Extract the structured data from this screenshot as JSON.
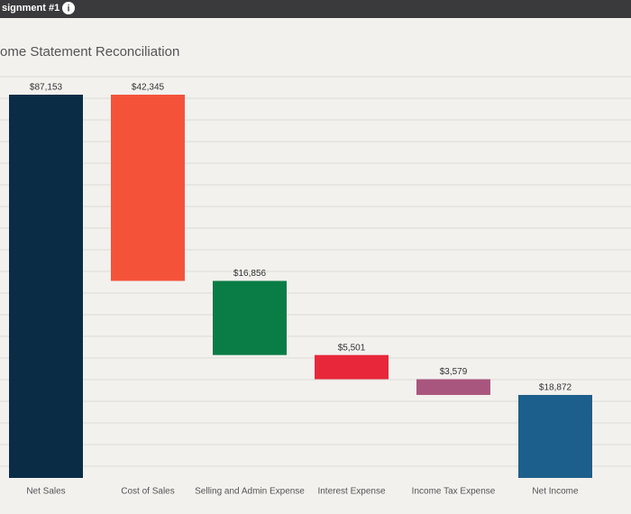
{
  "header": {
    "title": "signment #1"
  },
  "chart_data": {
    "type": "waterfall",
    "title": "Income Statement Reconciliation",
    "categories": [
      "Net Sales",
      "Cost of Sales",
      "Selling and Admin Expense",
      "Interest Expense",
      "Income Tax Expense",
      "Net Income"
    ],
    "values": [
      87153,
      42345,
      16856,
      5501,
      3579,
      18872
    ],
    "value_labels": [
      "$87,153",
      "$42,345",
      "$16,856",
      "$5,501",
      "$3,579",
      "$18,872"
    ],
    "measures": [
      "total",
      "decrease",
      "decrease",
      "decrease",
      "decrease",
      "total"
    ],
    "colors": [
      "#0a2d45",
      "#f4533a",
      "#0a7c45",
      "#e8273a",
      "#a9567e",
      "#1d5f8c"
    ],
    "grid": true
  }
}
